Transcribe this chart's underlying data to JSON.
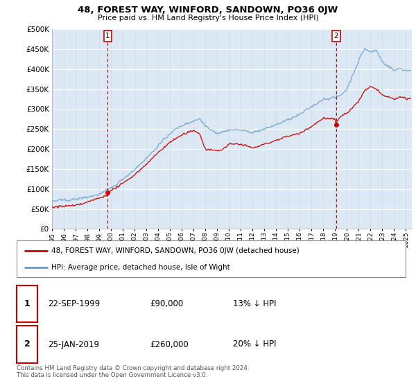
{
  "title": "48, FOREST WAY, WINFORD, SANDOWN, PO36 0JW",
  "subtitle": "Price paid vs. HM Land Registry's House Price Index (HPI)",
  "ylabel_ticks": [
    "£0",
    "£50K",
    "£100K",
    "£150K",
    "£200K",
    "£250K",
    "£300K",
    "£350K",
    "£400K",
    "£450K",
    "£500K"
  ],
  "ytick_values": [
    0,
    50000,
    100000,
    150000,
    200000,
    250000,
    300000,
    350000,
    400000,
    450000,
    500000
  ],
  "xlim_start": 1995.0,
  "xlim_end": 2025.5,
  "ylim_min": 0,
  "ylim_max": 500000,
  "property_color": "#cc0000",
  "hpi_color": "#6699cc",
  "plot_bg_color": "#dce9f5",
  "marker1_date": 1999.73,
  "marker1_value": 90000,
  "marker1_label": "1",
  "marker2_date": 2019.07,
  "marker2_value": 260000,
  "marker2_label": "2",
  "legend_line1": "48, FOREST WAY, WINFORD, SANDOWN, PO36 0JW (detached house)",
  "legend_line2": "HPI: Average price, detached house, Isle of Wight",
  "footnote": "Contains HM Land Registry data © Crown copyright and database right 2024.\nThis data is licensed under the Open Government Licence v3.0.",
  "background_color": "#ffffff",
  "hpi_anchors_x": [
    1995,
    1996,
    1997,
    1998,
    1999,
    2000,
    2001,
    2002,
    2003,
    2004,
    2005,
    2006,
    2007,
    2007.5,
    2008,
    2009,
    2010,
    2011,
    2012,
    2013,
    2014,
    2015,
    2016,
    2017,
    2018,
    2019,
    2019.5,
    2020,
    2021,
    2021.5,
    2022,
    2022.5,
    2023,
    2023.5,
    2024,
    2024.5,
    2025
  ],
  "hpi_anchors_y": [
    68000,
    70000,
    74000,
    80000,
    88000,
    103000,
    125000,
    150000,
    178000,
    210000,
    240000,
    260000,
    272000,
    278000,
    260000,
    240000,
    248000,
    248000,
    242000,
    248000,
    260000,
    272000,
    285000,
    305000,
    325000,
    328000,
    335000,
    350000,
    420000,
    450000,
    440000,
    445000,
    415000,
    405000,
    395000,
    400000,
    395000
  ],
  "prop_anchors_x": [
    1995,
    1996,
    1997,
    1998,
    1999,
    1999.73,
    2000,
    2001,
    2002,
    2003,
    2004,
    2005,
    2006,
    2007,
    2007.5,
    2008,
    2009,
    2009.5,
    2010,
    2011,
    2012,
    2013,
    2014,
    2015,
    2016,
    2017,
    2018,
    2019,
    2019.07,
    2019.5,
    2020,
    2021,
    2021.5,
    2022,
    2022.5,
    2023,
    2023.5,
    2024,
    2024.5,
    2025
  ],
  "prop_anchors_y": [
    60000,
    62000,
    65000,
    72000,
    82000,
    90000,
    100000,
    118000,
    140000,
    165000,
    195000,
    220000,
    238000,
    248000,
    242000,
    200000,
    195000,
    198000,
    210000,
    210000,
    200000,
    210000,
    220000,
    228000,
    238000,
    255000,
    275000,
    270000,
    260000,
    278000,
    285000,
    315000,
    340000,
    350000,
    345000,
    330000,
    325000,
    320000,
    325000,
    320000
  ]
}
